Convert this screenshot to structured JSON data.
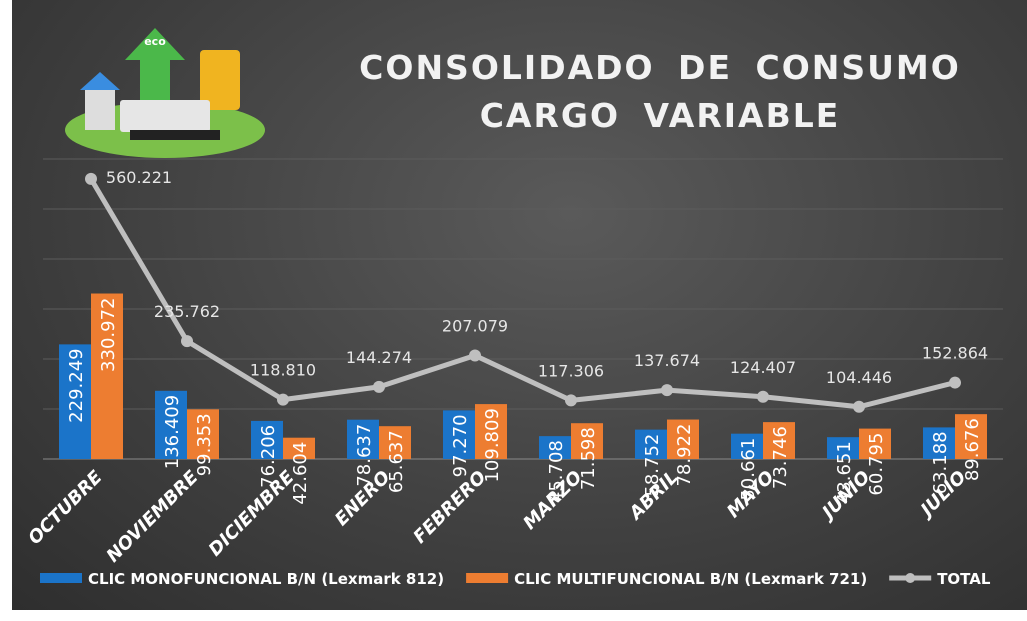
{
  "chart_data": {
    "type": "bar-line",
    "title": "CONSOLIDADO DE CONSUMO CARGO VARIABLE",
    "categories": [
      "OCTUBRE",
      "NOVIEMBRE",
      "DICIEMBRE",
      "ENERO",
      "FEBRERO",
      "MARZO",
      "ABRIL",
      "MAYO",
      "JUNIO",
      "JULIO"
    ],
    "series": [
      {
        "name": "CLIC MONOFUNCIONAL B/N (Lexmark 812)",
        "color": "#1b74c9",
        "kind": "bar",
        "values": [
          229249,
          136409,
          76206,
          78637,
          97270,
          45708,
          58752,
          50661,
          43651,
          63188
        ],
        "value_labels": [
          "229.249",
          "136.409",
          "76.206",
          "78.637",
          "97.270",
          "45.708",
          "58.752",
          "50.661",
          "43.651",
          "63.188"
        ]
      },
      {
        "name": "CLIC MULTIFUNCIONAL B/N (Lexmark 721)",
        "color": "#ed7d31",
        "kind": "bar",
        "values": [
          330972,
          99353,
          42604,
          65637,
          109809,
          71598,
          78922,
          73746,
          60795,
          89676
        ],
        "value_labels": [
          "330.972",
          "99.353",
          "42.604",
          "65.637",
          "109.809",
          "71.598",
          "78.922",
          "73.746",
          "60.795",
          "89.676"
        ]
      },
      {
        "name": "TOTAL",
        "color": "#bfbfbf",
        "kind": "line",
        "values": [
          560221,
          235762,
          118810,
          144274,
          207079,
          117306,
          137674,
          124407,
          104446,
          152864
        ],
        "value_labels": [
          "560.221",
          "235.762",
          "118.810",
          "144.274",
          "207.079",
          "117.306",
          "137.674",
          "124.407",
          "104.446",
          "152.864"
        ]
      }
    ],
    "ylim": [
      0,
      600000
    ],
    "yticks": [
      0,
      100000,
      200000,
      300000,
      400000,
      500000,
      600000
    ],
    "grid": true,
    "legend": "bottom"
  }
}
